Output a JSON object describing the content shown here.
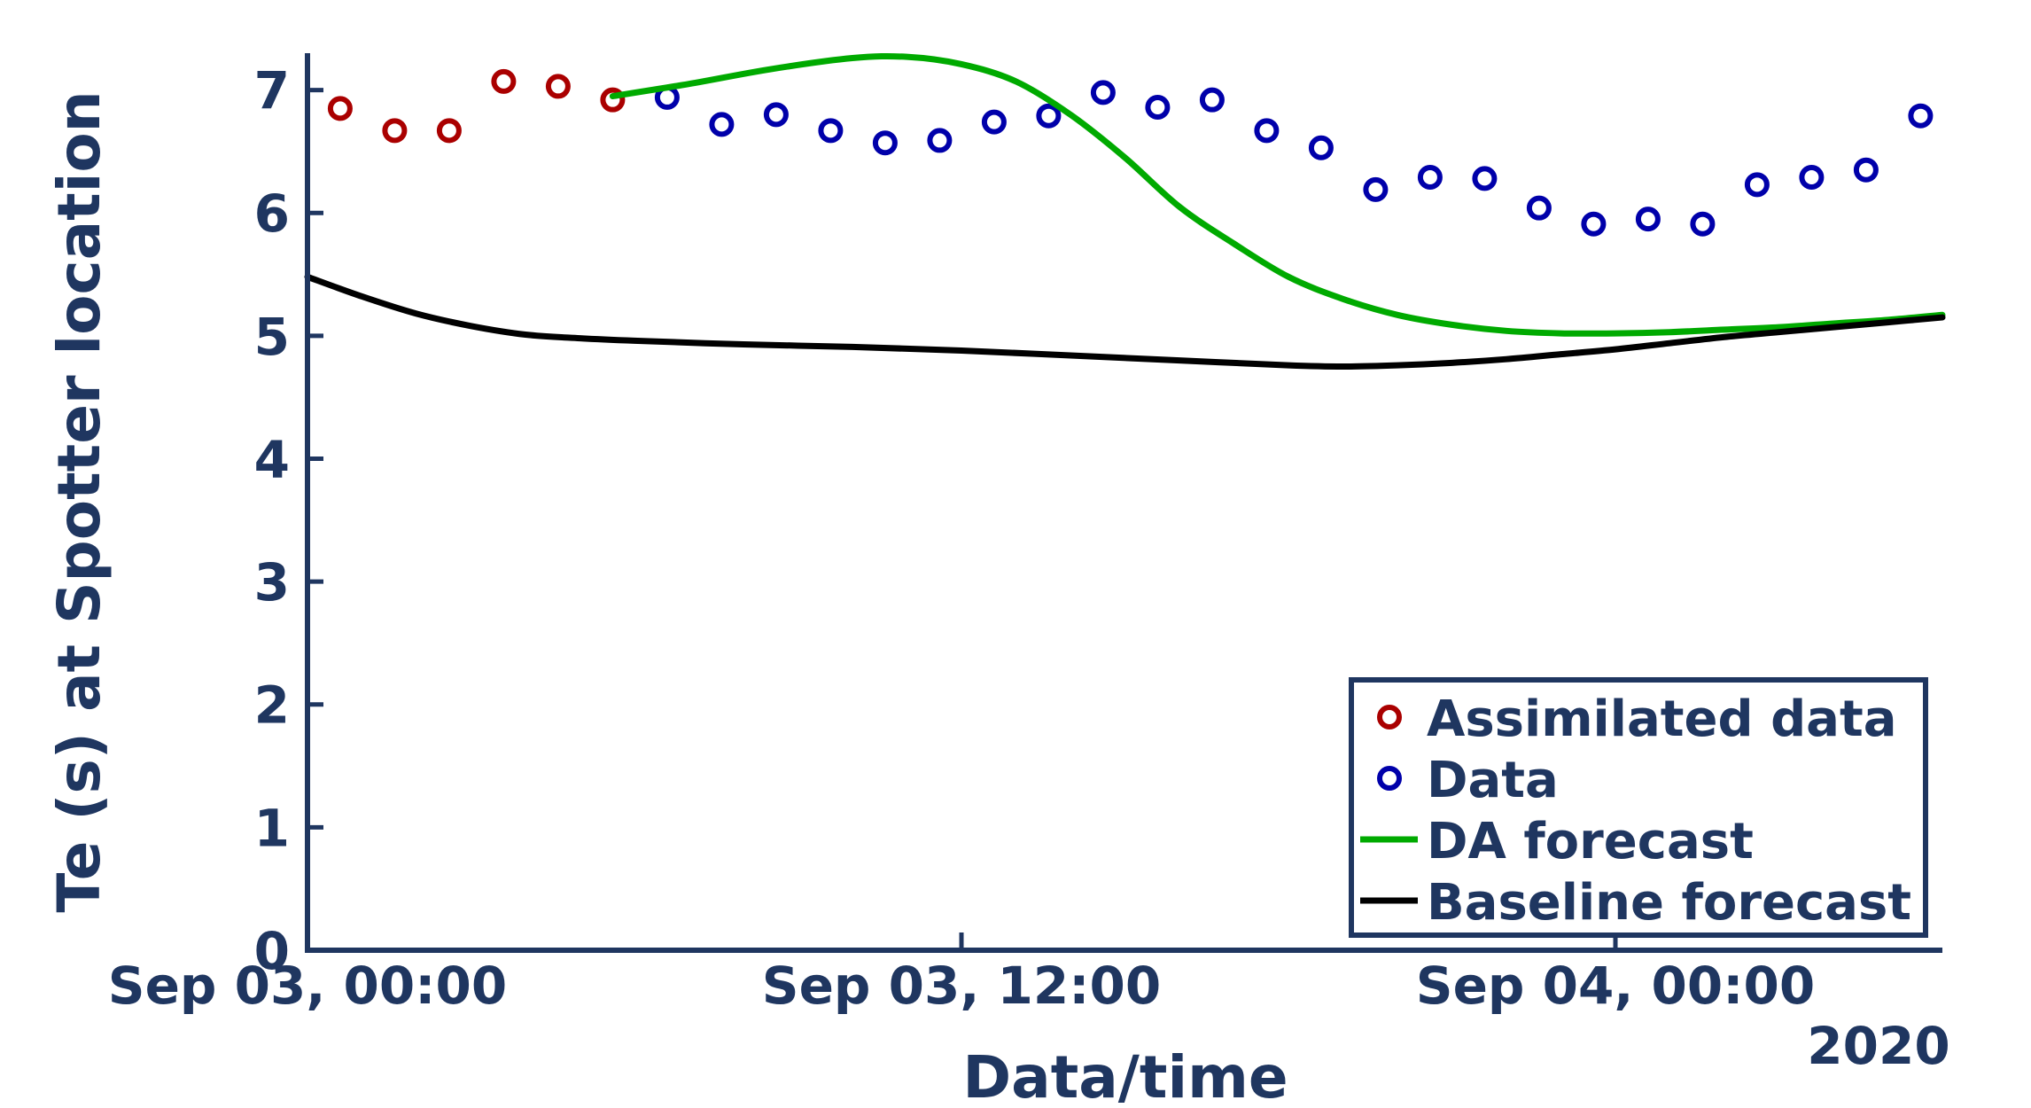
{
  "chart_data": {
    "type": "line",
    "title": "",
    "xlabel": "Data/time",
    "ylabel": "Te (s) at Spotter location",
    "x_units": "hours since Sep 03, 00:00 (2020)",
    "xlim": [
      0,
      30
    ],
    "ylim": [
      0,
      7.3
    ],
    "xticks": [
      {
        "value": 0,
        "label": "Sep 03, 00:00"
      },
      {
        "value": 12,
        "label": "Sep 03, 12:00"
      },
      {
        "value": 24,
        "label": "Sep 04, 00:00"
      }
    ],
    "x_secondary_label": "2020",
    "yticks": [
      0,
      1,
      2,
      3,
      4,
      5,
      6,
      7
    ],
    "legend_position": "bottom-right",
    "series": [
      {
        "name": "Assimilated data",
        "kind": "markers",
        "color": "#aa0000",
        "x": [
          0.6,
          1.6,
          2.6,
          3.6,
          4.6,
          5.6
        ],
        "y": [
          6.85,
          6.67,
          6.67,
          7.07,
          7.03,
          6.92
        ]
      },
      {
        "name": "Data",
        "kind": "markers",
        "color": "#0000aa",
        "x": [
          6.6,
          7.6,
          8.6,
          9.6,
          10.6,
          11.6,
          12.6,
          13.6,
          14.6,
          15.6,
          16.6,
          17.6,
          18.6,
          19.6,
          20.6,
          21.6,
          22.6,
          23.6,
          24.6,
          25.6,
          26.6,
          27.6,
          28.6,
          29.6
        ],
        "y": [
          6.94,
          6.72,
          6.8,
          6.67,
          6.57,
          6.59,
          6.74,
          6.79,
          6.98,
          6.86,
          6.92,
          6.67,
          6.53,
          6.19,
          6.29,
          6.28,
          6.04,
          5.91,
          5.95,
          5.91,
          6.23,
          6.29,
          6.35,
          6.79
        ]
      },
      {
        "name": "DA forecast",
        "kind": "line",
        "color": "#00aa00",
        "x": [
          5.6,
          7,
          8.5,
          10,
          11,
          12,
          13,
          14,
          15,
          16,
          17,
          18,
          19,
          20,
          21,
          22,
          23,
          24,
          25,
          26,
          27,
          28,
          29,
          30
        ],
        "y": [
          6.95,
          7.05,
          7.17,
          7.26,
          7.27,
          7.21,
          7.07,
          6.8,
          6.45,
          6.05,
          5.75,
          5.48,
          5.3,
          5.17,
          5.09,
          5.04,
          5.02,
          5.02,
          5.03,
          5.05,
          5.07,
          5.1,
          5.13,
          5.17
        ]
      },
      {
        "name": "Baseline forecast",
        "kind": "line",
        "color": "#000000",
        "x": [
          0,
          1,
          2,
          3,
          4,
          5,
          6,
          8,
          10,
          12,
          14,
          16,
          18,
          19,
          20,
          21,
          22,
          23,
          24,
          25,
          26,
          27,
          28,
          29,
          30
        ],
        "y": [
          5.48,
          5.32,
          5.18,
          5.08,
          5.01,
          4.98,
          4.96,
          4.93,
          4.91,
          4.88,
          4.84,
          4.8,
          4.76,
          4.75,
          4.76,
          4.78,
          4.81,
          4.85,
          4.89,
          4.94,
          4.99,
          5.03,
          5.07,
          5.11,
          5.15
        ]
      }
    ]
  },
  "colors": {
    "axis": "#1f3660"
  }
}
